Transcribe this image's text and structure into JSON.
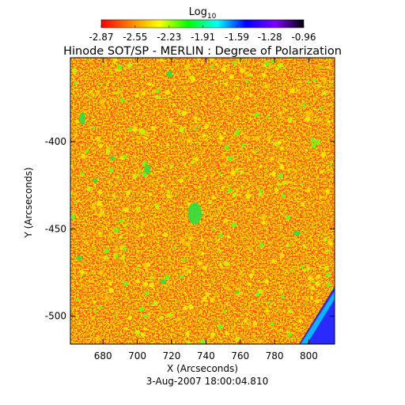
{
  "chart_data": {
    "type": "heatmap",
    "title": "Hinode SOT/SP - MERLIN : Degree of Polarization",
    "subtitle": "3-Aug-2007 18:00:04.810",
    "xlabel": "X (Arcseconds)",
    "ylabel": "Y (Arcseconds)",
    "xlim": [
      661,
      815
    ],
    "ylim": [
      -516,
      -352
    ],
    "x_ticks": [
      680,
      700,
      720,
      740,
      760,
      780,
      800
    ],
    "y_ticks": [
      -400,
      -450,
      -500
    ],
    "colorbar": {
      "label_base": "Log",
      "label_sub": "10",
      "min": -2.87,
      "max": -0.96,
      "ticks": [
        "-2.87",
        "-2.55",
        "-2.23",
        "-1.91",
        "-1.59",
        "-1.28",
        "-0.96"
      ],
      "colormap": "rainbow",
      "colors": [
        "#ff0000",
        "#ff8000",
        "#ffff00",
        "#00ff00",
        "#00ffff",
        "#0000ff",
        "#8000ff",
        "#000000"
      ]
    },
    "background_color": "#ff4a00"
  }
}
